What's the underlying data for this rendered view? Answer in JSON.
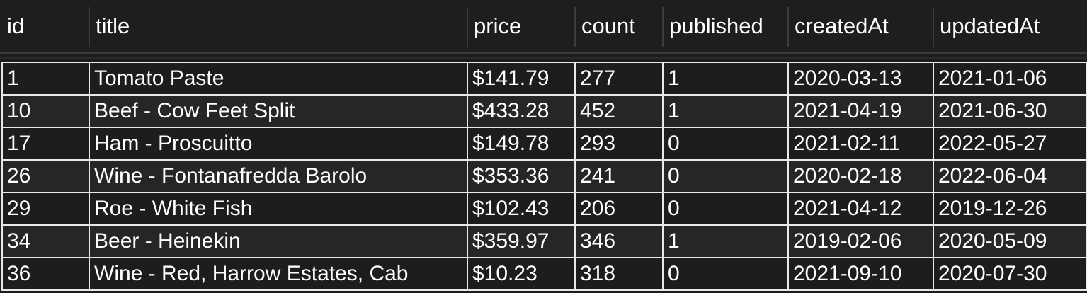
{
  "columns": [
    "id",
    "title",
    "price",
    "count",
    "published",
    "createdAt",
    "updatedAt"
  ],
  "rows": [
    [
      "1",
      "Tomato Paste",
      "$141.79",
      "277",
      "1",
      "2020-03-13",
      "2021-01-06"
    ],
    [
      "10",
      "Beef - Cow Feet Split",
      "$433.28",
      "452",
      "1",
      "2021-04-19",
      "2021-06-30"
    ],
    [
      "17",
      "Ham - Proscuitto",
      "$149.78",
      "293",
      "0",
      "2021-02-11",
      "2022-05-27"
    ],
    [
      "26",
      "Wine - Fontanafredda Barolo",
      "$353.36",
      "241",
      "0",
      "2020-02-18",
      "2022-06-04"
    ],
    [
      "29",
      "Roe - White Fish",
      "$102.43",
      "206",
      "0",
      "2021-04-12",
      "2019-12-26"
    ],
    [
      "34",
      "Beer - Heinekin",
      "$359.97",
      "346",
      "1",
      "2019-02-06",
      "2020-05-09"
    ],
    [
      "36",
      "Wine - Red, Harrow Estates, Cab",
      "$10.23",
      "318",
      "0",
      "2021-09-10",
      "2020-07-30"
    ]
  ]
}
